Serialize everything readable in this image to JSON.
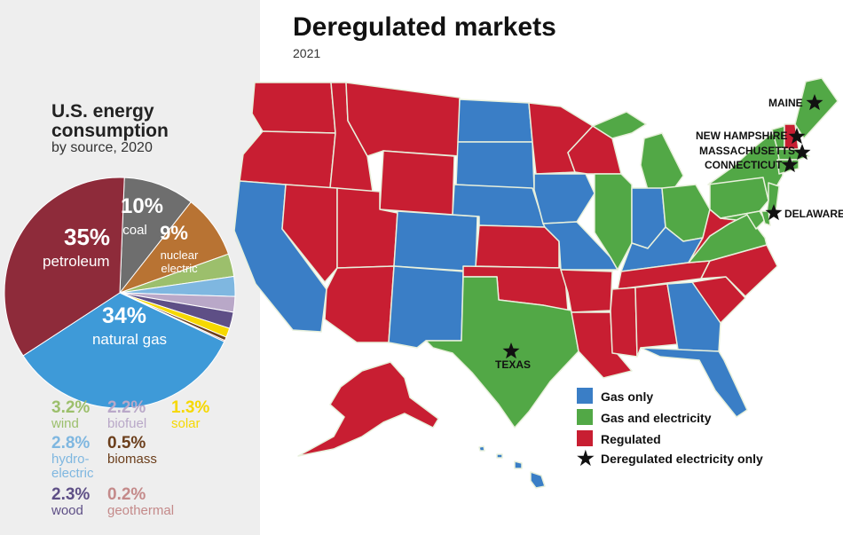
{
  "colors": {
    "petroleum": "#8e2b3a",
    "coal": "#6e6e6e",
    "nuclear": "#b87333",
    "wind": "#9cbf6c",
    "biofuel": "#b9a8c8",
    "solar": "#f6d800",
    "hydro": "#7fb7e0",
    "biomass": "#6b3e1b",
    "wood": "#5e4f86",
    "geothermal": "#c48a8a",
    "natural_gas": "#3e9ad8",
    "gas_only": "#3a7ec6",
    "gas_and_electricity": "#52a846",
    "regulated": "#c81e32",
    "state_border": "#e8f0dc"
  },
  "energy": {
    "title_line1": "U.S. energy",
    "title_line2": "consumption",
    "subtitle": "by source, 2020",
    "slices": [
      {
        "key": "coal",
        "value": 10
      },
      {
        "key": "nuclear",
        "value": 9
      },
      {
        "key": "wind",
        "value": 3.2
      },
      {
        "key": "hydro",
        "value": 2.8
      },
      {
        "key": "biofuel",
        "value": 2.2
      },
      {
        "key": "wood",
        "value": 2.3
      },
      {
        "key": "solar",
        "value": 1.3
      },
      {
        "key": "biomass",
        "value": 0.5
      },
      {
        "key": "geothermal",
        "value": 0.2
      },
      {
        "key": "natural_gas",
        "value": 34
      },
      {
        "key": "petroleum",
        "value": 35
      }
    ],
    "big_labels": {
      "coal": {
        "pct": "10%",
        "name": "coal"
      },
      "nuclear": {
        "pct": "9%",
        "name_line1": "nuclear",
        "name_line2": "electric"
      },
      "natural_gas": {
        "pct": "34%",
        "name": "natural gas"
      },
      "petroleum": {
        "pct": "35%",
        "name": "petroleum"
      }
    },
    "small": [
      {
        "pct": "3.2%",
        "name": "wind",
        "color_key": "wind"
      },
      {
        "pct": "2.2%",
        "name": "biofuel",
        "color_key": "biofuel"
      },
      {
        "pct": "1.3%",
        "name": "solar",
        "color_key": "solar"
      },
      {
        "pct": "2.8%",
        "name": "hydro-electric",
        "name_line1": "hydro-",
        "name_line2": "electric",
        "color_key": "hydro"
      },
      {
        "pct": "0.5%",
        "name": "biomass",
        "color_key": "biomass"
      },
      {
        "pct": "2.3%",
        "name": "wood",
        "color_key": "wood"
      },
      {
        "pct": "0.2%",
        "name": "geothermal",
        "color_key": "geothermal"
      }
    ]
  },
  "map": {
    "title": "Deregulated markets",
    "year": "2021",
    "state_labels": {
      "maine": "MAINE",
      "new_hampshire": "NEW HAMPSHIRE",
      "massachusetts": "MASSACHUSETTS",
      "connecticut": "CONNECTICUT",
      "delaware": "DELAWARE",
      "texas": "TEXAS"
    },
    "legend": {
      "gas_only": "Gas only",
      "gas_and_electricity": "Gas and electricity",
      "regulated": "Regulated",
      "deregulated_electricity_only": "Deregulated electricity only"
    }
  }
}
